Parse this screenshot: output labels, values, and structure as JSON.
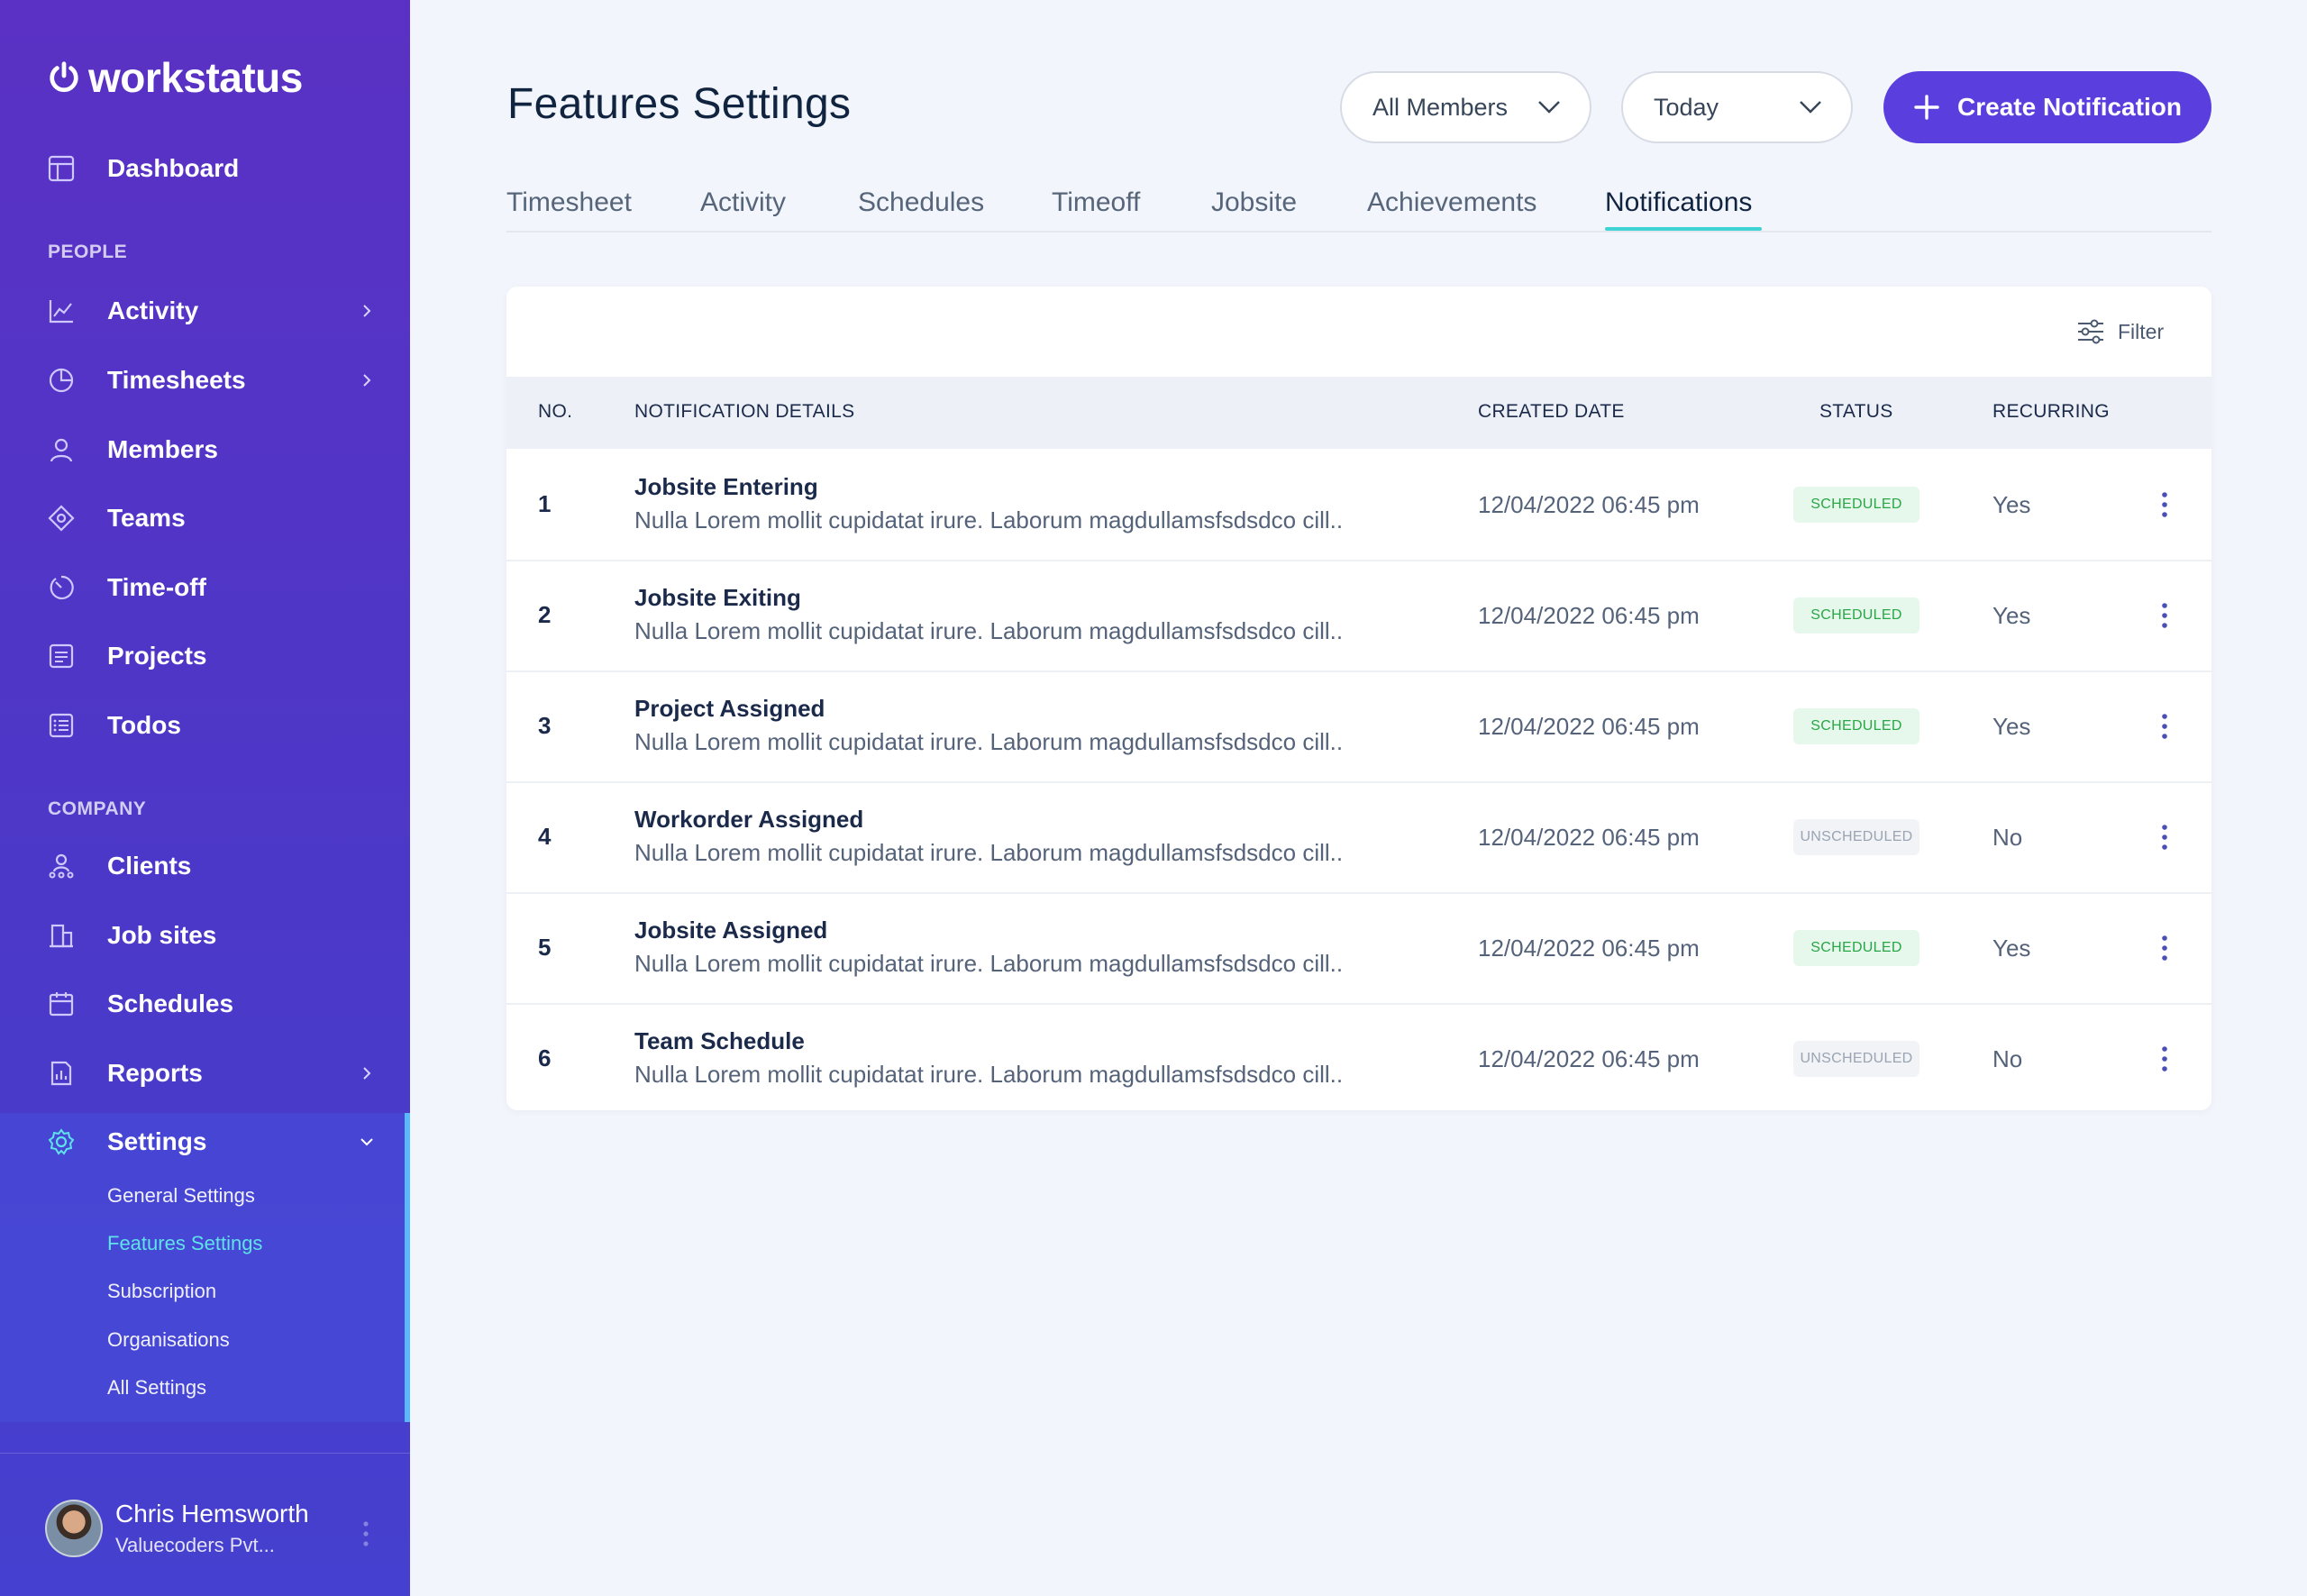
{
  "brand": {
    "name": "workstatus"
  },
  "sidebar": {
    "dashboard": "Dashboard",
    "people_label": "PEOPLE",
    "people": [
      {
        "label": "Activity",
        "icon": "line-chart-icon",
        "has_chevron": true
      },
      {
        "label": "Timesheets",
        "icon": "pie-chart-icon",
        "has_chevron": true
      },
      {
        "label": "Members",
        "icon": "user-icon",
        "has_chevron": false
      },
      {
        "label": "Teams",
        "icon": "teams-icon",
        "has_chevron": false
      },
      {
        "label": "Time-off",
        "icon": "timer-icon",
        "has_chevron": false
      },
      {
        "label": "Projects",
        "icon": "projects-icon",
        "has_chevron": false
      },
      {
        "label": "Todos",
        "icon": "todo-icon",
        "has_chevron": false
      }
    ],
    "company_label": "COMPANY",
    "company": [
      {
        "label": "Clients",
        "icon": "clients-icon",
        "has_chevron": false
      },
      {
        "label": "Job sites",
        "icon": "building-icon",
        "has_chevron": false
      },
      {
        "label": "Schedules",
        "icon": "calendar-icon",
        "has_chevron": false
      },
      {
        "label": "Reports",
        "icon": "report-icon",
        "has_chevron": true
      }
    ],
    "settings": {
      "label": "Settings",
      "items": [
        "General Settings",
        "Features Settings",
        "Subscription",
        "Organisations",
        "All Settings"
      ],
      "active_item": "Features Settings"
    },
    "user": {
      "name": "Chris Hemsworth",
      "org": "Valuecoders Pvt..."
    }
  },
  "header": {
    "title": "Features Settings",
    "members_filter": "All Members",
    "date_filter": "Today",
    "create_button": "Create Notification"
  },
  "tabs": [
    "Timesheet",
    "Activity",
    "Schedules",
    "Timeoff",
    "Jobsite",
    "Achievements",
    "Notifications"
  ],
  "active_tab": "Notifications",
  "table": {
    "filter_label": "Filter",
    "columns": [
      "NO.",
      "NOTIFICATION DETAILS",
      "CREATED DATE",
      "STATUS",
      "RECURRING"
    ],
    "rows": [
      {
        "no": "1",
        "title": "Jobsite Entering",
        "desc": "Nulla Lorem mollit cupidatat irure. Laborum magdullamsfsdsdco cill..",
        "date": "12/04/2022 06:45 pm",
        "status": "SCHEDULED",
        "recurring": "Yes"
      },
      {
        "no": "2",
        "title": "Jobsite Exiting",
        "desc": "Nulla Lorem mollit cupidatat irure. Laborum magdullamsfsdsdco cill..",
        "date": "12/04/2022 06:45 pm",
        "status": "SCHEDULED",
        "recurring": "Yes"
      },
      {
        "no": "3",
        "title": "Project Assigned",
        "desc": "Nulla Lorem mollit cupidatat irure. Laborum magdullamsfsdsdco cill..",
        "date": "12/04/2022 06:45 pm",
        "status": "SCHEDULED",
        "recurring": "Yes"
      },
      {
        "no": "4",
        "title": "Workorder Assigned",
        "desc": "Nulla Lorem mollit cupidatat irure. Laborum magdullamsfsdsdco cill..",
        "date": "12/04/2022 06:45 pm",
        "status": "UNSCHEDULED",
        "recurring": "No"
      },
      {
        "no": "5",
        "title": "Jobsite Assigned",
        "desc": "Nulla Lorem mollit cupidatat irure. Laborum magdullamsfsdsdco cill..",
        "date": "12/04/2022 06:45 pm",
        "status": "SCHEDULED",
        "recurring": "Yes"
      },
      {
        "no": "6",
        "title": "Team Schedule",
        "desc": "Nulla Lorem mollit cupidatat irure. Laborum magdullamsfsdsdco cill..",
        "date": "12/04/2022 06:45 pm",
        "status": "UNSCHEDULED",
        "recurring": "No"
      }
    ]
  },
  "colors": {
    "sidebar_top": "#5a31c4",
    "sidebar_bottom": "#4540cf",
    "accent": "#5b3fde",
    "tab_underline": "#3fd3d6",
    "active_submenu": "#5fe3ea",
    "scheduled": "#28a745",
    "unscheduled": "#9aa4b2"
  }
}
